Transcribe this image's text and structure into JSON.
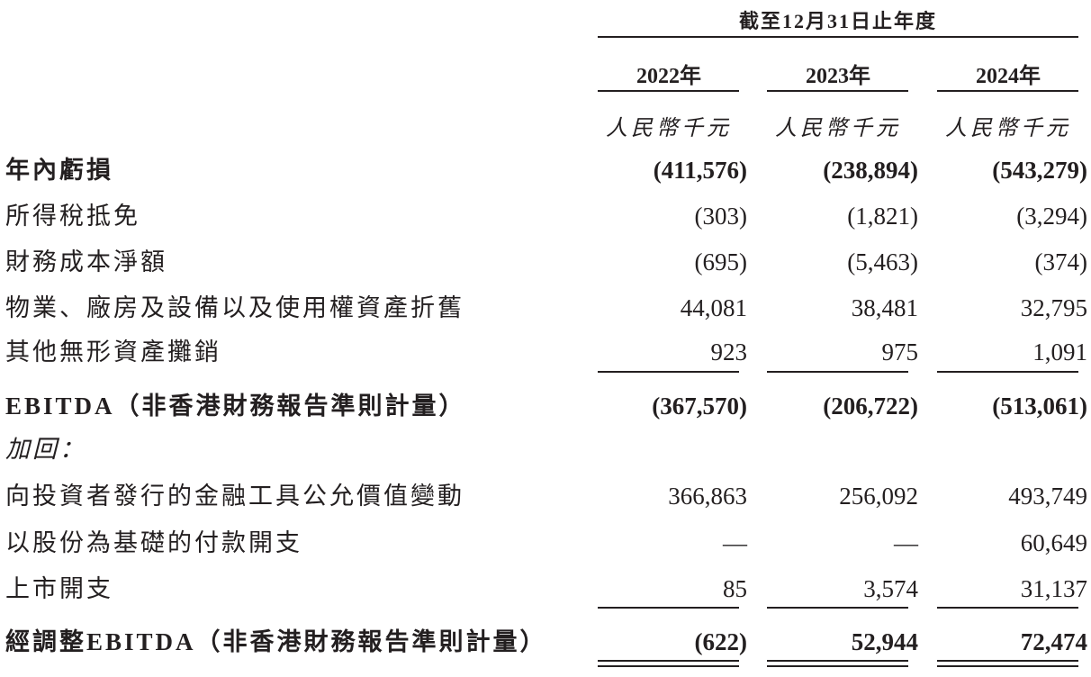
{
  "header": {
    "period": "截至12月31日止年度",
    "years": [
      "2022年",
      "2023年",
      "2024年"
    ],
    "units": [
      "人民幣千元",
      "人民幣千元",
      "人民幣千元"
    ]
  },
  "rows": [
    {
      "label": "年內虧損",
      "values": [
        "(411,576)",
        "(238,894)",
        "(543,279)"
      ]
    },
    {
      "label": "所得稅抵免",
      "values": [
        "(303)",
        "(1,821)",
        "(3,294)"
      ]
    },
    {
      "label": "財務成本淨額",
      "values": [
        "(695)",
        "(5,463)",
        "(374)"
      ]
    },
    {
      "label": "物業、廠房及設備以及使用權資產折舊",
      "values": [
        "44,081",
        "38,481",
        "32,795"
      ]
    },
    {
      "label": "其他無形資產攤銷",
      "values": [
        "923",
        "975",
        "1,091"
      ]
    },
    {
      "label": "EBITDA（非香港財務報告準則計量）",
      "values": [
        "(367,570)",
        "(206,722)",
        "(513,061)"
      ]
    },
    {
      "label": "加回：",
      "values": [
        "",
        "",
        ""
      ]
    },
    {
      "label": "向投資者發行的金融工具公允價值變動",
      "values": [
        "366,863",
        "256,092",
        "493,749"
      ]
    },
    {
      "label": "以股份為基礎的付款開支",
      "values": [
        "—",
        "—",
        "60,649"
      ]
    },
    {
      "label": "上市開支",
      "values": [
        "85",
        "3,574",
        "31,137"
      ]
    },
    {
      "label": "經調整EBITDA（非香港財務報告準則計量）",
      "values": [
        "(622)",
        "52,944",
        "72,474"
      ]
    }
  ]
}
